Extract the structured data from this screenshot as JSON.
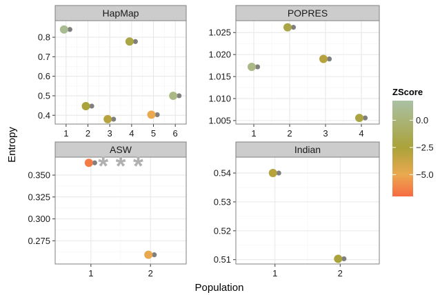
{
  "chart_data": {
    "type": "scatter",
    "xlabel": "Population",
    "ylabel": "Entropy",
    "panels": [
      {
        "name": "HapMap",
        "xlim": [
          0.5,
          6.5
        ],
        "xticks": [
          1,
          2,
          3,
          4,
          5,
          6
        ],
        "ylim": [
          0.355,
          0.885
        ],
        "yticks": [
          0.4,
          0.5,
          0.6,
          0.7,
          0.8
        ],
        "ytick_labels": [
          "0.4",
          "0.5",
          "0.6",
          "0.7",
          "0.8"
        ],
        "points": [
          {
            "x": 1,
            "y": 0.84,
            "z": 1.0
          },
          {
            "x": 2,
            "y": 0.447,
            "z": -2.5
          },
          {
            "x": 3,
            "y": 0.38,
            "z": -3.0
          },
          {
            "x": 4,
            "y": 0.778,
            "z": -2.0
          },
          {
            "x": 5,
            "y": 0.403,
            "z": -5.0
          },
          {
            "x": 6,
            "y": 0.5,
            "z": 0.5
          }
        ]
      },
      {
        "name": "POPRES",
        "xlim": [
          0.5,
          4.5
        ],
        "xticks": [
          1,
          2,
          3,
          4
        ],
        "ylim": [
          1.0042,
          1.0277
        ],
        "yticks": [
          1.005,
          1.01,
          1.015,
          1.02,
          1.025
        ],
        "ytick_labels": [
          "1.005",
          "1.010",
          "1.015",
          "1.020",
          "1.025"
        ],
        "points": [
          {
            "x": 1,
            "y": 1.0172,
            "z": 0.5
          },
          {
            "x": 2,
            "y": 1.0262,
            "z": -2.0
          },
          {
            "x": 3,
            "y": 1.019,
            "z": -3.0
          },
          {
            "x": 4,
            "y": 1.0056,
            "z": -2.2
          }
        ]
      },
      {
        "name": "ASW",
        "xlim": [
          0.4,
          2.6
        ],
        "xticks": [
          1,
          2
        ],
        "ylim": [
          0.2485,
          0.3705
        ],
        "yticks": [
          0.275,
          0.3,
          0.325,
          0.35
        ],
        "ytick_labels": [
          "0.275",
          "0.300",
          "0.325",
          "0.350"
        ],
        "points": [
          {
            "x": 1,
            "y": 0.364,
            "z": -6.5
          },
          {
            "x": 2,
            "y": 0.259,
            "z": -5.0
          }
        ],
        "annotation": "* * *"
      },
      {
        "name": "Indian",
        "xlim": [
          0.4,
          2.6
        ],
        "xticks": [
          1,
          2
        ],
        "ylim": [
          0.5085,
          0.5455
        ],
        "yticks": [
          0.51,
          0.52,
          0.53,
          0.54
        ],
        "ytick_labels": [
          "0.51",
          "0.52",
          "0.53",
          "0.54"
        ],
        "points": [
          {
            "x": 1,
            "y": 0.54,
            "z": -3.0
          },
          {
            "x": 2,
            "y": 0.5103,
            "z": -2.5
          }
        ]
      }
    ],
    "legend": {
      "title": "ZScore",
      "placement": "right",
      "zlim": [
        -7.0,
        1.8
      ],
      "ticks": [
        0.0,
        -2.5,
        -5.0
      ],
      "tick_labels": [
        "0.0",
        "−2.5",
        "−5.0"
      ]
    },
    "colors": {
      "grey_dot": "#7f7f7f",
      "gradient": [
        {
          "z": 1.8,
          "color": "#a9c1a4"
        },
        {
          "z": -2.5,
          "color": "#aaa23a"
        },
        {
          "z": -5.0,
          "color": "#eaa94f"
        },
        {
          "z": -7.0,
          "color": "#f76b43"
        }
      ]
    }
  }
}
